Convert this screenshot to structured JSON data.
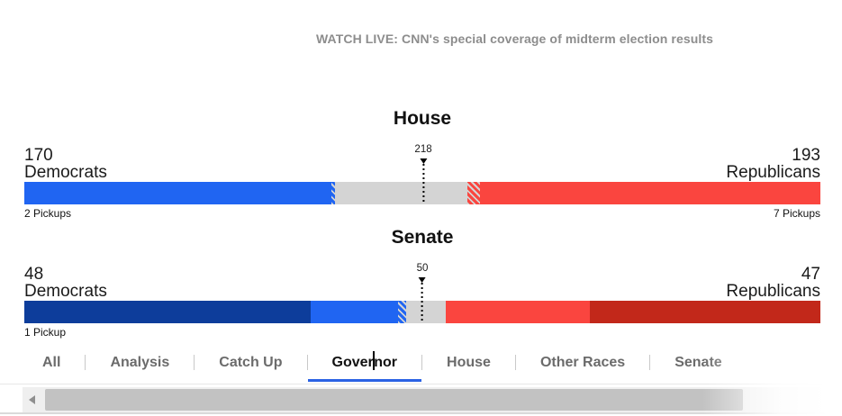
{
  "banner": {
    "text": "WATCH LIVE: CNN's special coverage of midterm election results"
  },
  "colors": {
    "dem_bright": "#2065f2",
    "dem_dark": "#0d3d9b",
    "rep_bright": "#fa453f",
    "rep_dark": "#c2281a",
    "undecided_gray": "#d4d4d4",
    "active_tab_underline": "#2a62e4",
    "banner_text": "#8d8d8d"
  },
  "chart_data": [
    {
      "type": "bar",
      "subtype": "balance-of-power",
      "title": "House",
      "total_seats": 435,
      "majority_marker": 218,
      "left": {
        "value": "170",
        "label": "Democrats",
        "pickups": "2 Pickups"
      },
      "right": {
        "value": "193",
        "label": "Republicans",
        "pickups": "7 Pickups"
      },
      "segments": [
        {
          "name": "dem-solid",
          "seats": 168,
          "color": "#2065f2",
          "pattern": "solid"
        },
        {
          "name": "dem-leading",
          "seats": 2,
          "color": "#2065f2",
          "pattern": "hatch"
        },
        {
          "name": "undecided",
          "seats": 72,
          "color": "#d4d4d4",
          "pattern": "solid"
        },
        {
          "name": "rep-leading",
          "seats": 7,
          "color": "#fa453f",
          "pattern": "hatch"
        },
        {
          "name": "rep-solid",
          "seats": 186,
          "color": "#fa453f",
          "pattern": "solid"
        }
      ]
    },
    {
      "type": "bar",
      "subtype": "balance-of-power",
      "title": "Senate",
      "total_seats": 100,
      "majority_marker": 50,
      "left": {
        "value": "48",
        "label": "Democrats",
        "pickups": "1 Pickup"
      },
      "right": {
        "value": "47",
        "label": "Republicans",
        "pickups": ""
      },
      "segments": [
        {
          "name": "dem-holdover",
          "seats": 36,
          "color": "#0d3d9b",
          "pattern": "solid"
        },
        {
          "name": "dem-won",
          "seats": 11,
          "color": "#2065f2",
          "pattern": "solid"
        },
        {
          "name": "dem-leading",
          "seats": 1,
          "color": "#2065f2",
          "pattern": "hatch"
        },
        {
          "name": "undecided",
          "seats": 5,
          "color": "#d4d4d4",
          "pattern": "solid"
        },
        {
          "name": "rep-won",
          "seats": 18,
          "color": "#fa453f",
          "pattern": "solid"
        },
        {
          "name": "rep-holdover",
          "seats": 29,
          "color": "#c2281a",
          "pattern": "solid"
        }
      ]
    }
  ],
  "tabs": {
    "items": [
      {
        "label": "All"
      },
      {
        "label": "Analysis"
      },
      {
        "label": "Catch Up"
      },
      {
        "label": "Governor",
        "active": true,
        "caret_before": "Gover",
        "caret_after": "nor"
      },
      {
        "label": "House"
      },
      {
        "label": "Other Races"
      },
      {
        "label": "Senate"
      }
    ]
  },
  "scrollbar": {
    "left_arrow_icon": "scrollbar-left-arrow"
  }
}
